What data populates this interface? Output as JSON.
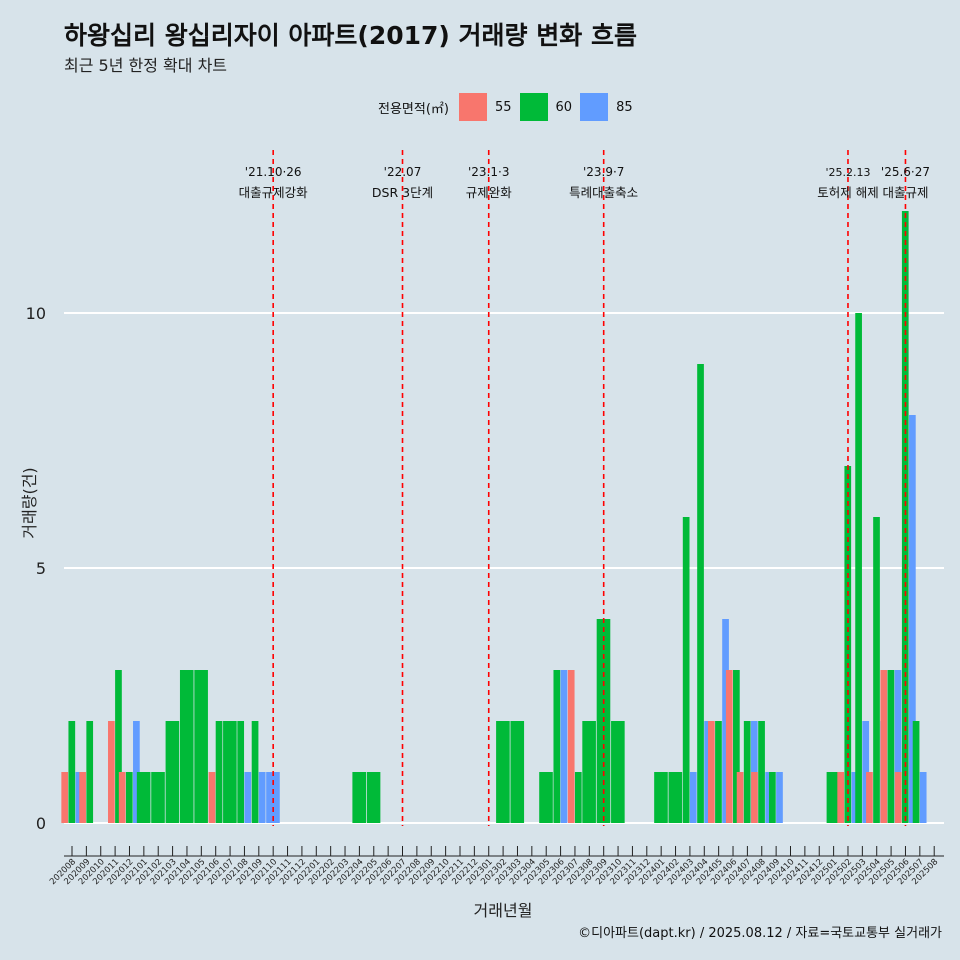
{
  "title": "하왕십리 왕십리자이 아파트(2017) 거래량 변화 흐름",
  "subtitle": "최근 5년 한정 확대 차트",
  "caption": "©디아파트(dapt.kr) / 2025.08.12 / 자료=국토교통부 실거래가",
  "colors": {
    "55": "#f8766d",
    "60": "#00ba38",
    "85": "#619cff",
    "event_line": "#ff0000",
    "background": "#d7e3ea",
    "gridline": "#ffffff"
  },
  "chart_data": {
    "type": "bar",
    "title": "하왕십리 왕십리자이 아파트(2017) 거래량 변화 흐름",
    "subtitle": "최근 5년 한정 확대 차트",
    "xlabel": "거래년월",
    "ylabel": "거래량(건)",
    "ylim": [
      0,
      12
    ],
    "yticks": [
      0,
      5,
      10
    ],
    "grid": "horizontal",
    "legend": {
      "title": "전용면적(㎡)",
      "placement": "top",
      "entries": [
        "55",
        "60",
        "85"
      ]
    },
    "categories": [
      "202008",
      "202009",
      "202010",
      "202011",
      "202012",
      "202101",
      "202102",
      "202103",
      "202104",
      "202105",
      "202106",
      "202107",
      "202108",
      "202109",
      "202110",
      "202111",
      "202112",
      "202201",
      "202202",
      "202203",
      "202204",
      "202205",
      "202206",
      "202207",
      "202208",
      "202209",
      "202210",
      "202211",
      "202212",
      "202301",
      "202302",
      "202303",
      "202304",
      "202305",
      "202306",
      "202307",
      "202308",
      "202309",
      "202310",
      "202311",
      "202312",
      "202401",
      "202402",
      "202403",
      "202404",
      "202405",
      "202406",
      "202407",
      "202408",
      "202409",
      "202410",
      "202411",
      "202412",
      "202501",
      "202502",
      "202503",
      "202504",
      "202505",
      "202506",
      "202507",
      "202508"
    ],
    "series": [
      {
        "name": "55",
        "values": [
          1,
          1,
          0,
          2,
          1,
          0,
          0,
          0,
          0,
          0,
          1,
          0,
          0,
          0,
          0,
          0,
          0,
          0,
          0,
          0,
          0,
          0,
          0,
          0,
          0,
          0,
          0,
          0,
          0,
          0,
          0,
          0,
          0,
          0,
          0,
          3,
          0,
          0,
          0,
          0,
          0,
          0,
          0,
          0,
          0,
          2,
          3,
          1,
          1,
          0,
          0,
          0,
          0,
          0,
          1,
          0,
          1,
          3,
          1,
          0,
          0
        ]
      },
      {
        "name": "60",
        "values": [
          2,
          2,
          0,
          3,
          1,
          1,
          1,
          2,
          3,
          3,
          2,
          2,
          2,
          2,
          0,
          0,
          0,
          0,
          0,
          0,
          1,
          1,
          0,
          0,
          0,
          0,
          0,
          0,
          0,
          0,
          2,
          2,
          0,
          1,
          3,
          1,
          2,
          4,
          2,
          0,
          0,
          1,
          1,
          6,
          9,
          2,
          3,
          2,
          2,
          1,
          0,
          0,
          0,
          1,
          7,
          10,
          6,
          3,
          12,
          2,
          0
        ]
      },
      {
        "name": "85",
        "values": [
          1,
          0,
          0,
          0,
          2,
          0,
          0,
          0,
          0,
          0,
          0,
          0,
          1,
          1,
          1,
          0,
          0,
          0,
          0,
          0,
          0,
          0,
          0,
          0,
          0,
          0,
          0,
          0,
          0,
          0,
          0,
          0,
          0,
          0,
          3,
          0,
          0,
          0,
          0,
          0,
          0,
          0,
          0,
          1,
          2,
          4,
          0,
          2,
          1,
          1,
          0,
          0,
          0,
          0,
          1,
          2,
          2,
          3,
          8,
          1,
          0
        ]
      }
    ],
    "annotations": [
      {
        "x": "202110",
        "date": "'21.10·26",
        "label": "대출규제강화"
      },
      {
        "x": "202207",
        "date": "'22.07",
        "label": "DSR 3단계"
      },
      {
        "x": "202301",
        "date": "'23.1·3",
        "label": "규제완화"
      },
      {
        "x": "202309",
        "date": "'23.9·7",
        "label": "특례대출축소"
      },
      {
        "x": "202502",
        "date": "'25.2.13",
        "label": "토허제 해제"
      },
      {
        "x": "202506",
        "date": "'25.6·27",
        "label": "대출규제"
      }
    ]
  }
}
